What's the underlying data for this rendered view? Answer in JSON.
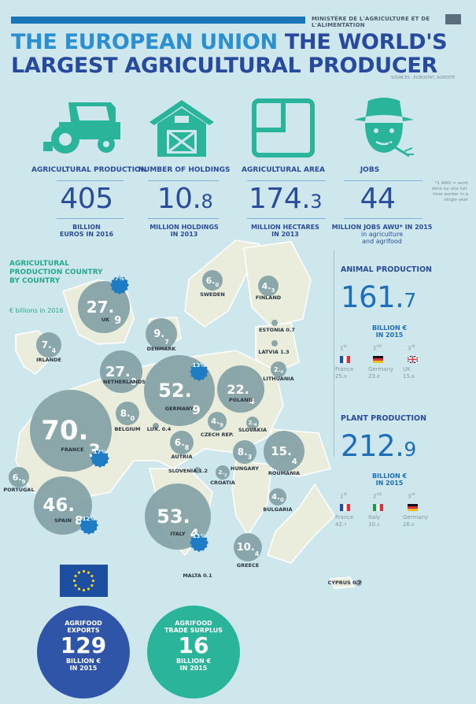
{
  "header": {
    "ministry": "MINISTÈRE DE L'AGRICULTURE ET DE L'ALIMENTATION",
    "title_part1": "THE EUROPEAN UNION",
    "title_part2": " THE WORLD'S",
    "title_line2": "LARGEST AGRICULTURAL PRODUCER",
    "sources": "SOURCES : EUROSTAT, AGRESTE"
  },
  "colors": {
    "teal": "#2ab59a",
    "navy": "#2a4c9b",
    "blue": "#1e6fb8",
    "bubble": "#7f9ea3",
    "badge": "#1d7cc3"
  },
  "kpis": [
    {
      "icon": "tractor-icon",
      "label": "AGRICULTURAL PRODUCTION",
      "value_int": "405",
      "value_dec": "",
      "unit_line1": "BILLION",
      "unit_line2": "EUROS IN 2016"
    },
    {
      "icon": "barn-icon",
      "label": "NUMBER OF HOLDINGS",
      "value_int": "10.",
      "value_dec": "8",
      "unit_line1": "MILLION HOLDINGS",
      "unit_line2": "IN 2013"
    },
    {
      "icon": "field-icon",
      "label": "AGRICULTURAL AREA",
      "value_int": "174.",
      "value_dec": "3",
      "unit_line1": "MILLION HECTARES",
      "unit_line2": "IN 2013"
    },
    {
      "icon": "farmer-icon",
      "label": "JOBS",
      "value_int": "44",
      "value_dec": "",
      "unit_line1": "MILLION JOBS AWU* IN 2015",
      "unit_line2": "in agriculture",
      "unit_line3": "and agrifood"
    }
  ],
  "awu_note": "*1 AWU = work done by one full-time worker in a single year",
  "map": {
    "title": "AGRICULTURAL PRODUCTION COUNTRY BY COUNTRY",
    "subtitle": "€ billions in 2016",
    "countries": [
      {
        "name": "UK",
        "int": "27.",
        "dec": "9",
        "badge": "7%"
      },
      {
        "name": "IRLANDE",
        "int": "7.",
        "dec": "4"
      },
      {
        "name": "DENMARK",
        "int": "9.",
        "dec": "7"
      },
      {
        "name": "SWEDEN",
        "int": "6.",
        "dec": "0"
      },
      {
        "name": "FINLAND",
        "int": "4.",
        "dec": "3"
      },
      {
        "name": "ESTONIA",
        "value": "0.7"
      },
      {
        "name": "LATVIA",
        "value": "1.3"
      },
      {
        "name": "LITHUANIA",
        "int": "2.",
        "dec": "4"
      },
      {
        "name": "NETHERLANDS",
        "int": "27.",
        "dec": "0"
      },
      {
        "name": "GERMANY",
        "int": "52.",
        "dec": "9",
        "badge": "13%"
      },
      {
        "name": "POLAND",
        "int": "22.",
        "dec": "4"
      },
      {
        "name": "BELGIUM",
        "int": "8.",
        "dec": "0"
      },
      {
        "name": "LUX.",
        "value": "0.4"
      },
      {
        "name": "CZECH REP.",
        "int": "4.",
        "dec": "9"
      },
      {
        "name": "SLOVAKIA",
        "int": "2.",
        "dec": "4"
      },
      {
        "name": "FRANCE",
        "int": "70.",
        "dec": "3",
        "badge": "17%"
      },
      {
        "name": "AUTRIA",
        "int": "6.",
        "dec": "8"
      },
      {
        "name": "HUNGARY",
        "int": "8.",
        "dec": "3"
      },
      {
        "name": "ROUMANIA",
        "int": "15.",
        "dec": "4"
      },
      {
        "name": "SLOVENIA",
        "value": "1.2"
      },
      {
        "name": "CROATIA",
        "int": "2.",
        "dec": "2"
      },
      {
        "name": "PORTUGAL",
        "int": "6.",
        "dec": "9"
      },
      {
        "name": "SPAIN",
        "int": "46.",
        "dec": "8",
        "badge": "12%"
      },
      {
        "name": "ITALY",
        "int": "53.",
        "dec": "4",
        "badge": "13%"
      },
      {
        "name": "BULGARIA",
        "int": "4.",
        "dec": "0"
      },
      {
        "name": "GREECE",
        "int": "10.",
        "dec": "4"
      },
      {
        "name": "MALTA",
        "value": "0.1"
      },
      {
        "name": "CYPRUS",
        "value": "0.7"
      }
    ]
  },
  "animal": {
    "title": "ANIMAL PRODUCTION",
    "value_int": "161.",
    "value_dec": "7",
    "unit_line1": "BILLION €",
    "unit_line2": "IN 2015",
    "ranks": [
      {
        "ord": "1",
        "suf": "st",
        "flag": "fr",
        "country": "France",
        "v_int": "25.",
        "v_dec": "9"
      },
      {
        "ord": "2",
        "suf": "nd",
        "flag": "de",
        "country": "Germany",
        "v_int": "23.",
        "v_dec": "8"
      },
      {
        "ord": "3",
        "suf": "rd",
        "flag": "uk",
        "country": "UK",
        "v_int": "15.",
        "v_dec": "8"
      }
    ]
  },
  "plant": {
    "title": "PLANT PRODUCTION",
    "value_int": "212.",
    "value_dec": "9",
    "unit_line1": "BILLION €",
    "unit_line2": "IN 2015",
    "ranks": [
      {
        "ord": "1",
        "suf": "st",
        "flag": "fr",
        "country": "France",
        "v_int": "42.",
        "v_dec": "7"
      },
      {
        "ord": "2",
        "suf": "nd",
        "flag": "it",
        "country": "Italy",
        "v_int": "30.",
        "v_dec": "1"
      },
      {
        "ord": "3",
        "suf": "rd",
        "flag": "de",
        "country": "Germany",
        "v_int": "26.",
        "v_dec": "0"
      }
    ]
  },
  "exports": {
    "label1": "AGRIFOOD",
    "label2": "EXPORTS",
    "value": "129",
    "unit1": "BILLION €",
    "unit2": "IN 2015"
  },
  "surplus": {
    "label1": "AGRIFOOD",
    "label2": "TRADE SURPLUS",
    "value": "16",
    "unit1": "BILLION €",
    "unit2": "IN 2015"
  }
}
